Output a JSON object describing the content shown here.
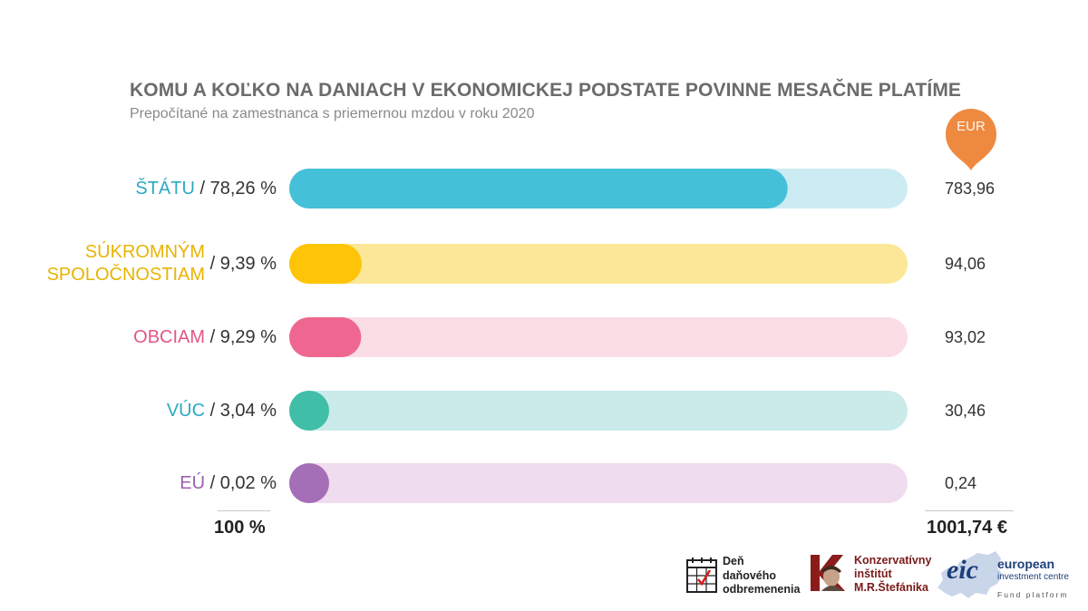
{
  "title": "KOMU A KOĽKO NA DANIACH V EKONOMICKEJ PODSTATE POVINNE MESAČNE PLATÍME",
  "subtitle": "Prepočítané na zamestnanca s priemernou mzdou v roku 2020",
  "unit_badge": "EUR",
  "chart_data": {
    "type": "bar",
    "orientation": "horizontal",
    "title": "KOMU A KOĽKO NA DANIACH V EKONOMICKEJ PODSTATE POVINNE MESAČNE PLATÍME",
    "subtitle": "Prepočítané na zamestnanca s priemernou mzdou v roku 2020",
    "xlim": [
      0,
      100
    ],
    "categories": [
      {
        "name": "ŠTÁTU",
        "name_lines": [
          "ŠTÁTU"
        ],
        "share_label": "/ 78,26 %",
        "share": 78.26,
        "value_label": "783,96",
        "value": 783.96,
        "color": "#44c1d8",
        "track_color": "#cdebf3",
        "label_color": "#2aa9c4"
      },
      {
        "name": "SÚKROMNÝM SPOLOČNOSTIAM",
        "name_lines": [
          "SÚKROMNÝM",
          "SPOLOČNOSTIAM"
        ],
        "share_label": "/ 9,39 %",
        "share": 9.39,
        "value_label": "94,06",
        "value": 94.06,
        "color": "#fec508",
        "track_color": "#fbe797",
        "label_color": "#e8b400"
      },
      {
        "name": "OBCIAM",
        "name_lines": [
          "OBCIAM"
        ],
        "share_label": "/ 9,29 %",
        "share": 9.29,
        "value_label": "93,02",
        "value": 93.02,
        "color": "#ef6790",
        "track_color": "#fbdde6",
        "label_color": "#e35683"
      },
      {
        "name": "VÚC",
        "name_lines": [
          "VÚC"
        ],
        "share_label": "/ 3,04 %",
        "share": 3.04,
        "value_label": "30,46",
        "value": 30.46,
        "color": "#40bea7",
        "track_color": "#cbeaea",
        "label_color": "#2aa9c4"
      },
      {
        "name": "EÚ",
        "name_lines": [
          "EÚ"
        ],
        "share_label": "/ 0,02 %",
        "share": 0.02,
        "value_label": "0,24",
        "value": 0.24,
        "color": "#a46fb6",
        "track_color": "#efdcee",
        "label_color": "#9b5fb0"
      }
    ],
    "totals": {
      "share_label": "100 %",
      "value_label": "1001,74 €"
    },
    "grid": false,
    "legend": "none"
  },
  "logos": {
    "den": {
      "lines": [
        "Deň",
        "daňového",
        "odbremenenia"
      ],
      "icon": "calendar-check-icon"
    },
    "kimrs": {
      "lines": [
        "Konzervatívny",
        "inštitút",
        "M.R.Štefánika"
      ],
      "icon": "portrait-k-icon",
      "color": "#7b1a1a"
    },
    "eic": {
      "mark": "eic",
      "lines": [
        "european",
        "investment centre"
      ],
      "tagline": "Fund platform",
      "color": "#1d3e7a"
    }
  }
}
